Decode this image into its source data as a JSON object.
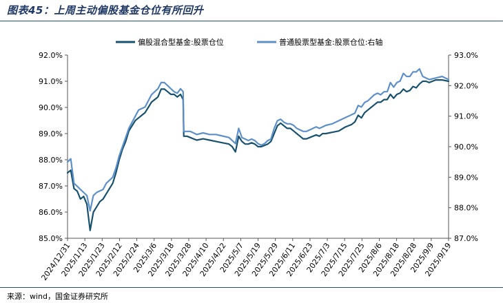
{
  "header": {
    "title": "图表45：上周主动偏股基金仓位有所回升"
  },
  "footer": {
    "source": "来源：wind，国金证券研究所"
  },
  "colors": {
    "title": "#1f3864",
    "rule": "#1f4e79",
    "series_mixed": "#17516e",
    "series_ordinary": "#5d8fc9"
  },
  "chart_data": {
    "type": "line",
    "title": "",
    "x_tick_labels": [
      "2024/12/31",
      "2025/1/13",
      "2025/1/23",
      "2025/2/12",
      "2025/2/24",
      "2025/3/6",
      "2025/3/18",
      "2025/3/28",
      "2025/4/10",
      "2025/4/22",
      "2025/5/7",
      "2025/5/19",
      "2025/5/29",
      "2025/6/11",
      "2025/6/23",
      "2025/7/3",
      "2025/7/15",
      "2025/7/25",
      "2025/8/6",
      "2025/8/18",
      "2025/8/28",
      "2025/9/9",
      "2025/9/19"
    ],
    "y_left": {
      "min": 85.0,
      "max": 92.0,
      "step": 1.0,
      "tick_labels": [
        "85.0%",
        "86.0%",
        "87.0%",
        "88.0%",
        "89.0%",
        "90.0%",
        "91.0%",
        "92.0%"
      ]
    },
    "y_right": {
      "min": 87.0,
      "max": 93.0,
      "step": 1.0,
      "tick_labels": [
        "87.0%",
        "88.0%",
        "89.0%",
        "90.0%",
        "91.0%",
        "92.0%",
        "93.0%"
      ]
    },
    "legend_position": "top-center",
    "series": [
      {
        "name": "偏股混合型基金:股票仓位",
        "axis": "left",
        "color": "#17516e",
        "points": [
          [
            0,
            87.5
          ],
          [
            0.5,
            87.6
          ],
          [
            1,
            86.9
          ],
          [
            1.5,
            86.8
          ],
          [
            2,
            86.5
          ],
          [
            2.5,
            86.6
          ],
          [
            3,
            86.3
          ],
          [
            3.5,
            85.3
          ],
          [
            4,
            86.0
          ],
          [
            4.5,
            86.2
          ],
          [
            5,
            86.4
          ],
          [
            5.5,
            86.5
          ],
          [
            6,
            86.7
          ],
          [
            6.5,
            86.9
          ],
          [
            7,
            87.1
          ],
          [
            7.5,
            87.5
          ],
          [
            8,
            88.0
          ],
          [
            8.5,
            88.4
          ],
          [
            9,
            88.7
          ],
          [
            9.5,
            89.1
          ],
          [
            10,
            89.3
          ],
          [
            10.5,
            89.5
          ],
          [
            11,
            89.6
          ],
          [
            11.5,
            89.7
          ],
          [
            12,
            89.8
          ],
          [
            12.5,
            90.0
          ],
          [
            13,
            90.2
          ],
          [
            13.5,
            90.3
          ],
          [
            14,
            90.4
          ],
          [
            14.5,
            90.7
          ],
          [
            15,
            90.7
          ],
          [
            15.5,
            90.6
          ],
          [
            16,
            90.5
          ],
          [
            16.5,
            90.5
          ],
          [
            17,
            90.4
          ],
          [
            17.5,
            90.5
          ],
          [
            17.9,
            90.3
          ],
          [
            18,
            88.9
          ],
          [
            18.5,
            88.9
          ],
          [
            19,
            88.85
          ],
          [
            19.5,
            88.8
          ],
          [
            20,
            88.75
          ],
          [
            21,
            88.8
          ],
          [
            22,
            88.75
          ],
          [
            23,
            88.7
          ],
          [
            24,
            88.65
          ],
          [
            25,
            88.6
          ],
          [
            25.5,
            88.5
          ],
          [
            26,
            88.3
          ],
          [
            26.5,
            88.9
          ],
          [
            27,
            88.7
          ],
          [
            27.5,
            88.6
          ],
          [
            28,
            88.6
          ],
          [
            28.5,
            88.65
          ],
          [
            29,
            88.6
          ],
          [
            29.5,
            88.5
          ],
          [
            30,
            88.5
          ],
          [
            30.5,
            88.55
          ],
          [
            31,
            88.6
          ],
          [
            31.5,
            88.7
          ],
          [
            32,
            89.0
          ],
          [
            32.5,
            89.3
          ],
          [
            33,
            89.4
          ],
          [
            33.5,
            89.3
          ],
          [
            34,
            89.2
          ],
          [
            34.5,
            89.2
          ],
          [
            35,
            89.1
          ],
          [
            35.5,
            89.0
          ],
          [
            36,
            88.9
          ],
          [
            36.5,
            88.8
          ],
          [
            37,
            88.8
          ],
          [
            37.5,
            88.85
          ],
          [
            38,
            88.9
          ],
          [
            38.5,
            88.95
          ],
          [
            39,
            88.9
          ],
          [
            39.5,
            89.0
          ],
          [
            40,
            89.0
          ],
          [
            41,
            89.05
          ],
          [
            42,
            89.1
          ],
          [
            43,
            89.25
          ],
          [
            44,
            89.35
          ],
          [
            44.5,
            89.45
          ],
          [
            45,
            89.7
          ],
          [
            45.5,
            89.6
          ],
          [
            46,
            89.8
          ],
          [
            46.5,
            89.9
          ],
          [
            47,
            90.0
          ],
          [
            47.5,
            90.1
          ],
          [
            48,
            90.2
          ],
          [
            48.5,
            90.2
          ],
          [
            49,
            90.3
          ],
          [
            49.5,
            90.3
          ],
          [
            50,
            90.5
          ],
          [
            50.5,
            90.35
          ],
          [
            51,
            90.5
          ],
          [
            51.5,
            90.55
          ],
          [
            52,
            90.7
          ],
          [
            52.5,
            90.6
          ],
          [
            53,
            90.65
          ],
          [
            53.5,
            90.8
          ],
          [
            54,
            90.75
          ],
          [
            54.5,
            90.9
          ],
          [
            55,
            91.0
          ],
          [
            55.5,
            91.0
          ],
          [
            56,
            90.95
          ],
          [
            57,
            91.05
          ],
          [
            58,
            91.05
          ],
          [
            59,
            91.0
          ]
        ]
      },
      {
        "name": "普通股票型基金:股票仓位:右轴",
        "axis": "right",
        "color": "#5d8fc9",
        "points": [
          [
            0,
            89.5
          ],
          [
            0.5,
            89.6
          ],
          [
            1,
            88.8
          ],
          [
            1.5,
            88.7
          ],
          [
            2,
            88.6
          ],
          [
            2.5,
            88.5
          ],
          [
            3,
            88.4
          ],
          [
            3.5,
            87.9
          ],
          [
            4,
            88.4
          ],
          [
            4.5,
            88.5
          ],
          [
            5,
            88.55
          ],
          [
            5.5,
            88.6
          ],
          [
            6,
            88.8
          ],
          [
            6.5,
            88.9
          ],
          [
            7,
            89.0
          ],
          [
            7.5,
            89.3
          ],
          [
            8,
            89.7
          ],
          [
            8.5,
            90.0
          ],
          [
            9,
            90.3
          ],
          [
            9.5,
            90.6
          ],
          [
            10,
            90.8
          ],
          [
            10.5,
            91.0
          ],
          [
            11,
            91.2
          ],
          [
            11.5,
            91.25
          ],
          [
            12,
            91.3
          ],
          [
            12.5,
            91.5
          ],
          [
            13,
            91.7
          ],
          [
            13.5,
            91.8
          ],
          [
            14,
            91.9
          ],
          [
            14.5,
            92.1
          ],
          [
            15,
            92.1
          ],
          [
            15.5,
            92.0
          ],
          [
            16,
            91.9
          ],
          [
            16.5,
            91.8
          ],
          [
            17,
            91.75
          ],
          [
            17.5,
            91.9
          ],
          [
            17.9,
            91.8
          ],
          [
            18,
            90.5
          ],
          [
            18.5,
            90.5
          ],
          [
            19,
            90.5
          ],
          [
            19.5,
            90.45
          ],
          [
            20,
            90.4
          ],
          [
            21,
            90.45
          ],
          [
            22,
            90.4
          ],
          [
            23,
            90.4
          ],
          [
            24,
            90.35
          ],
          [
            25,
            90.3
          ],
          [
            25.5,
            90.2
          ],
          [
            26,
            90.1
          ],
          [
            26.5,
            90.6
          ],
          [
            27,
            90.3
          ],
          [
            27.5,
            90.25
          ],
          [
            28,
            90.2
          ],
          [
            28.5,
            90.25
          ],
          [
            29,
            90.2
          ],
          [
            29.5,
            90.1
          ],
          [
            30,
            90.05
          ],
          [
            30.5,
            90.1
          ],
          [
            31,
            90.2
          ],
          [
            31.5,
            90.25
          ],
          [
            32,
            90.6
          ],
          [
            32.5,
            90.85
          ],
          [
            33,
            90.9
          ],
          [
            33.5,
            90.8
          ],
          [
            34,
            90.75
          ],
          [
            34.5,
            90.75
          ],
          [
            35,
            90.7
          ],
          [
            35.5,
            90.6
          ],
          [
            36,
            90.55
          ],
          [
            36.5,
            90.5
          ],
          [
            37,
            90.5
          ],
          [
            37.5,
            90.55
          ],
          [
            38,
            90.6
          ],
          [
            38.5,
            90.65
          ],
          [
            39,
            90.6
          ],
          [
            39.5,
            90.65
          ],
          [
            40,
            90.7
          ],
          [
            41,
            90.75
          ],
          [
            42,
            90.85
          ],
          [
            43,
            90.95
          ],
          [
            44,
            91.05
          ],
          [
            44.5,
            91.1
          ],
          [
            45,
            91.35
          ],
          [
            45.5,
            91.3
          ],
          [
            46,
            91.45
          ],
          [
            46.5,
            91.5
          ],
          [
            47,
            91.6
          ],
          [
            47.5,
            91.7
          ],
          [
            48,
            91.75
          ],
          [
            48.5,
            91.7
          ],
          [
            49,
            91.8
          ],
          [
            49.5,
            91.8
          ],
          [
            50,
            92.1
          ],
          [
            50.5,
            91.95
          ],
          [
            51,
            92.1
          ],
          [
            51.5,
            92.15
          ],
          [
            52,
            92.4
          ],
          [
            52.5,
            92.3
          ],
          [
            53,
            92.3
          ],
          [
            53.5,
            92.45
          ],
          [
            54,
            92.45
          ],
          [
            54.5,
            92.55
          ],
          [
            55,
            92.3
          ],
          [
            55.5,
            92.25
          ],
          [
            56,
            92.2
          ],
          [
            57,
            92.25
          ],
          [
            58,
            92.3
          ],
          [
            59,
            92.2
          ]
        ]
      }
    ]
  }
}
